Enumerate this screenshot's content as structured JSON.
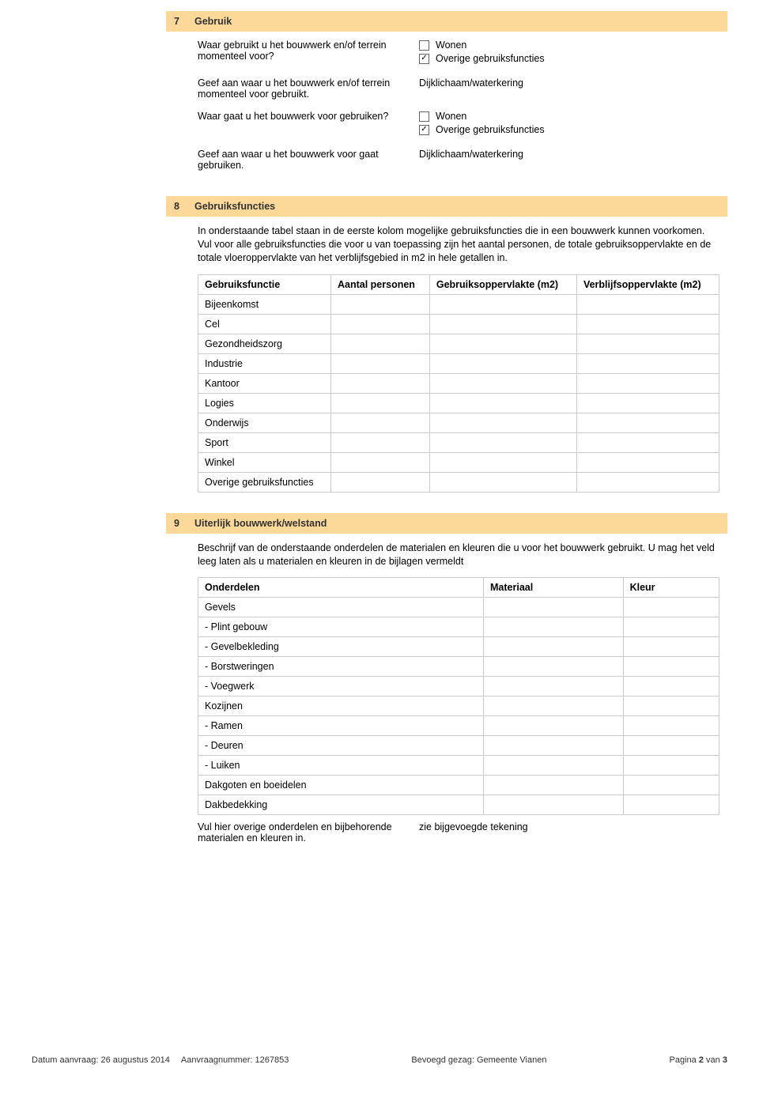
{
  "colors": {
    "section_header_bg": "#fcd998",
    "table_border": "#cccccc",
    "checkmark": "#333333"
  },
  "sections": {
    "s7": {
      "num": "7",
      "title": "Gebruik"
    },
    "s8": {
      "num": "8",
      "title": "Gebruiksfuncties"
    },
    "s9": {
      "num": "9",
      "title": "Uiterlijk bouwwerk/welstand"
    }
  },
  "s7": {
    "q1": "Waar gebruikt u het bouwwerk en/of terrein momenteel voor?",
    "q1_opt1": {
      "label": "Wonen",
      "checked": false
    },
    "q1_opt2": {
      "label": "Overige gebruiksfuncties",
      "checked": true
    },
    "q2": "Geef aan waar u het bouwwerk en/of terrein momenteel voor gebruikt.",
    "q2_ans": "Dijklichaam/waterkering",
    "q3": "Waar gaat u het bouwwerk voor gebruiken?",
    "q3_opt1": {
      "label": "Wonen",
      "checked": false
    },
    "q3_opt2": {
      "label": "Overige gebruiksfuncties",
      "checked": true
    },
    "q4": "Geef aan waar u het bouwwerk voor gaat gebruiken.",
    "q4_ans": "Dijklichaam/waterkering"
  },
  "s8": {
    "intro": "In onderstaande tabel staan in de eerste kolom mogelijke gebruiksfuncties die in een bouwwerk kunnen voorkomen. Vul voor alle gebruiksfuncties die voor u van toepassing zijn het aantal personen, de totale gebruiksoppervlakte en de totale vloeroppervlakte van het verblijfsgebied in m2 in hele getallen in.",
    "table": {
      "headers": [
        "Gebruiksfunctie",
        "Aantal personen",
        "Gebruiksoppervlakte (m2)",
        "Verblijfsoppervlakte (m2)"
      ],
      "rows": [
        "Bijeenkomst",
        "Cel",
        "Gezondheidszorg",
        "Industrie",
        "Kantoor",
        "Logies",
        "Onderwijs",
        "Sport",
        "Winkel",
        "Overige gebruiksfuncties"
      ]
    }
  },
  "s9": {
    "intro": "Beschrijf van de onderstaande onderdelen de materialen en kleuren die u voor het bouwwerk gebruikt. U mag het veld leeg laten als u materialen en kleuren in de bijlagen vermeldt",
    "table": {
      "headers": [
        "Onderdelen",
        "Materiaal",
        "Kleur"
      ],
      "rows": [
        "Gevels",
        "- Plint gebouw",
        "- Gevelbekleding",
        "- Borstweringen",
        "- Voegwerk",
        "Kozijnen",
        "- Ramen",
        "- Deuren",
        "- Luiken",
        "Dakgoten en boeidelen",
        "Dakbedekking"
      ]
    },
    "extra_q": "Vul hier overige onderdelen en bijbehorende materialen en kleuren in.",
    "extra_a": "zie bijgevoegde tekening"
  },
  "footer": {
    "datum_label": "Datum aanvraag:",
    "datum": "26 augustus 2014",
    "aanvraag_label": "Aanvraagnummer:",
    "aanvraag": "1267853",
    "gezag_label": "Bevoegd gezag:",
    "gezag": "Gemeente Vianen",
    "page_pre": "Pagina",
    "page_cur": "2",
    "page_mid": "van",
    "page_tot": "3"
  }
}
